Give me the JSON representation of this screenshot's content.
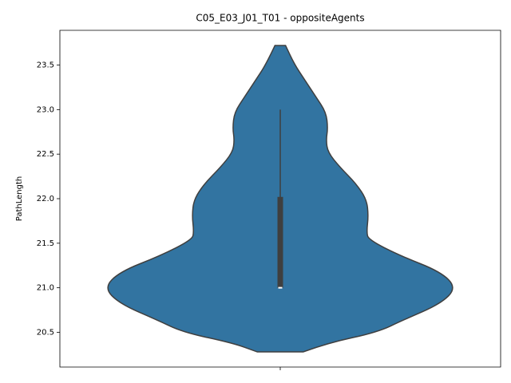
{
  "chart_data": {
    "type": "violin",
    "title": "C05_E03_J01_T01 - oppositeAgents",
    "ylabel": "PathLength",
    "categories": [
      null
    ],
    "color": "#3274a1",
    "edge_color": "#3f3f3f",
    "ylim": [
      20.11,
      23.89
    ],
    "yticks": [
      20.5,
      {
        "value": 21,
        "label": "21.0"
      },
      21.5,
      {
        "value": 22,
        "label": "22.0"
      },
      22.5,
      {
        "value": 23,
        "label": "23.0"
      },
      23.5
    ],
    "violin": {
      "y": [
        20.28,
        20.38,
        20.5,
        20.64,
        20.82,
        21.0,
        21.18,
        21.36,
        21.54,
        21.63,
        21.81,
        21.99,
        22.17,
        22.35,
        22.52,
        22.66,
        22.79,
        22.97,
        23.15,
        23.33,
        23.51,
        23.72
      ],
      "density": [
        0.13,
        0.27,
        0.55,
        0.7,
        0.91,
        1.0,
        0.91,
        0.68,
        0.5,
        0.49,
        0.5,
        0.49,
        0.43,
        0.34,
        0.27,
        0.26,
        0.27,
        0.26,
        0.2,
        0.14,
        0.08,
        0.03
      ]
    },
    "box": {
      "whisker_low": 21.0,
      "q1": 21.0,
      "median": 21.0,
      "q3": 22.02,
      "whisker_high": 23.0
    }
  }
}
